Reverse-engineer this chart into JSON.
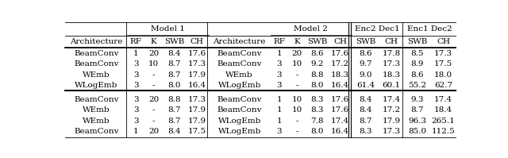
{
  "header_row2": [
    "Architecture",
    "RF",
    "K",
    "SWB",
    "CH",
    "Architecture",
    "RF",
    "K",
    "SWB",
    "CH",
    "SWB",
    "CH",
    "SWB",
    "CH"
  ],
  "section1": [
    [
      "BeamConv",
      "1",
      "20",
      "8.4",
      "17.6",
      "BeamConv",
      "1",
      "20",
      "8.6",
      "17.6",
      "8.6",
      "17.8",
      "8.5",
      "17.3"
    ],
    [
      "BeamConv",
      "3",
      "10",
      "8.7",
      "17.3",
      "BeamConv",
      "3",
      "10",
      "9.2",
      "17.2",
      "9.7",
      "17.3",
      "8.9",
      "17.5"
    ],
    [
      "WEmb",
      "3",
      "-",
      "8.7",
      "17.9",
      "WEmb",
      "3",
      "-",
      "8.8",
      "18.3",
      "9.0",
      "18.3",
      "8.6",
      "18.0"
    ],
    [
      "WLogEmb",
      "3",
      "-",
      "8.0",
      "16.4",
      "WLogEmb",
      "3",
      "-",
      "8.0",
      "16.4",
      "61.4",
      "60.1",
      "55.2",
      "62.7"
    ]
  ],
  "section2": [
    [
      "BeamConv",
      "3",
      "20",
      "8.8",
      "17.3",
      "BeamConv",
      "1",
      "10",
      "8.3",
      "17.6",
      "8.4",
      "17.4",
      "9.3",
      "17.4"
    ],
    [
      "WEmb",
      "3",
      "-",
      "8.7",
      "17.9",
      "BeamConv",
      "1",
      "10",
      "8.3",
      "17.6",
      "8.4",
      "17.2",
      "8.7",
      "18.4"
    ],
    [
      "WEmb",
      "3",
      "-",
      "8.7",
      "17.9",
      "WLogEmb",
      "1",
      "-",
      "7.8",
      "17.4",
      "8.7",
      "17.9",
      "96.3",
      "265.1"
    ],
    [
      "BeamConv",
      "1",
      "20",
      "8.4",
      "17.5",
      "WLogEmb",
      "3",
      "-",
      "8.0",
      "16.4",
      "8.3",
      "17.3",
      "85.0",
      "112.5"
    ]
  ],
  "font_size": 7.5,
  "fig_width": 6.4,
  "fig_height": 1.99,
  "dpi": 100
}
